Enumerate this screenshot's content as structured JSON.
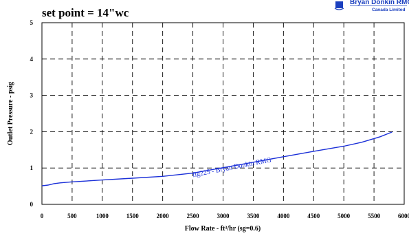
{
  "logo": {
    "line1": "Bryan Donkin RMG",
    "line2": "Canada Limited",
    "color": "#1a3fbf"
  },
  "chart_data": {
    "type": "line",
    "title": "set point = 14\"wc",
    "xlabel": "Flow Rate - ft³/hr (sg=0.6)",
    "ylabel": "Outlet Pressure - psig",
    "xlim": [
      0,
      6000
    ],
    "ylim": [
      0,
      5
    ],
    "x_ticks": [
      0,
      500,
      1000,
      1500,
      2000,
      2500,
      3000,
      3500,
      4000,
      4500,
      5000,
      5500,
      6000
    ],
    "y_ticks": [
      0,
      1,
      2,
      3,
      4,
      5
    ],
    "grid": "dashed",
    "line_color": "#1a2fd8",
    "annotation": {
      "text": "fig225 - Bryan Donkin RMG",
      "x": 2500,
      "y": 0.75,
      "color": "#1a2fd8"
    },
    "series": [
      {
        "name": "",
        "x": [
          0,
          100,
          200,
          300,
          500,
          800,
          1000,
          1500,
          2000,
          2500,
          3000,
          3500,
          4000,
          4500,
          5000,
          5300,
          5600,
          5800
        ],
        "y": [
          0.51,
          0.53,
          0.57,
          0.59,
          0.62,
          0.65,
          0.67,
          0.72,
          0.77,
          0.86,
          1.01,
          1.16,
          1.31,
          1.46,
          1.6,
          1.71,
          1.86,
          1.99
        ]
      }
    ]
  }
}
